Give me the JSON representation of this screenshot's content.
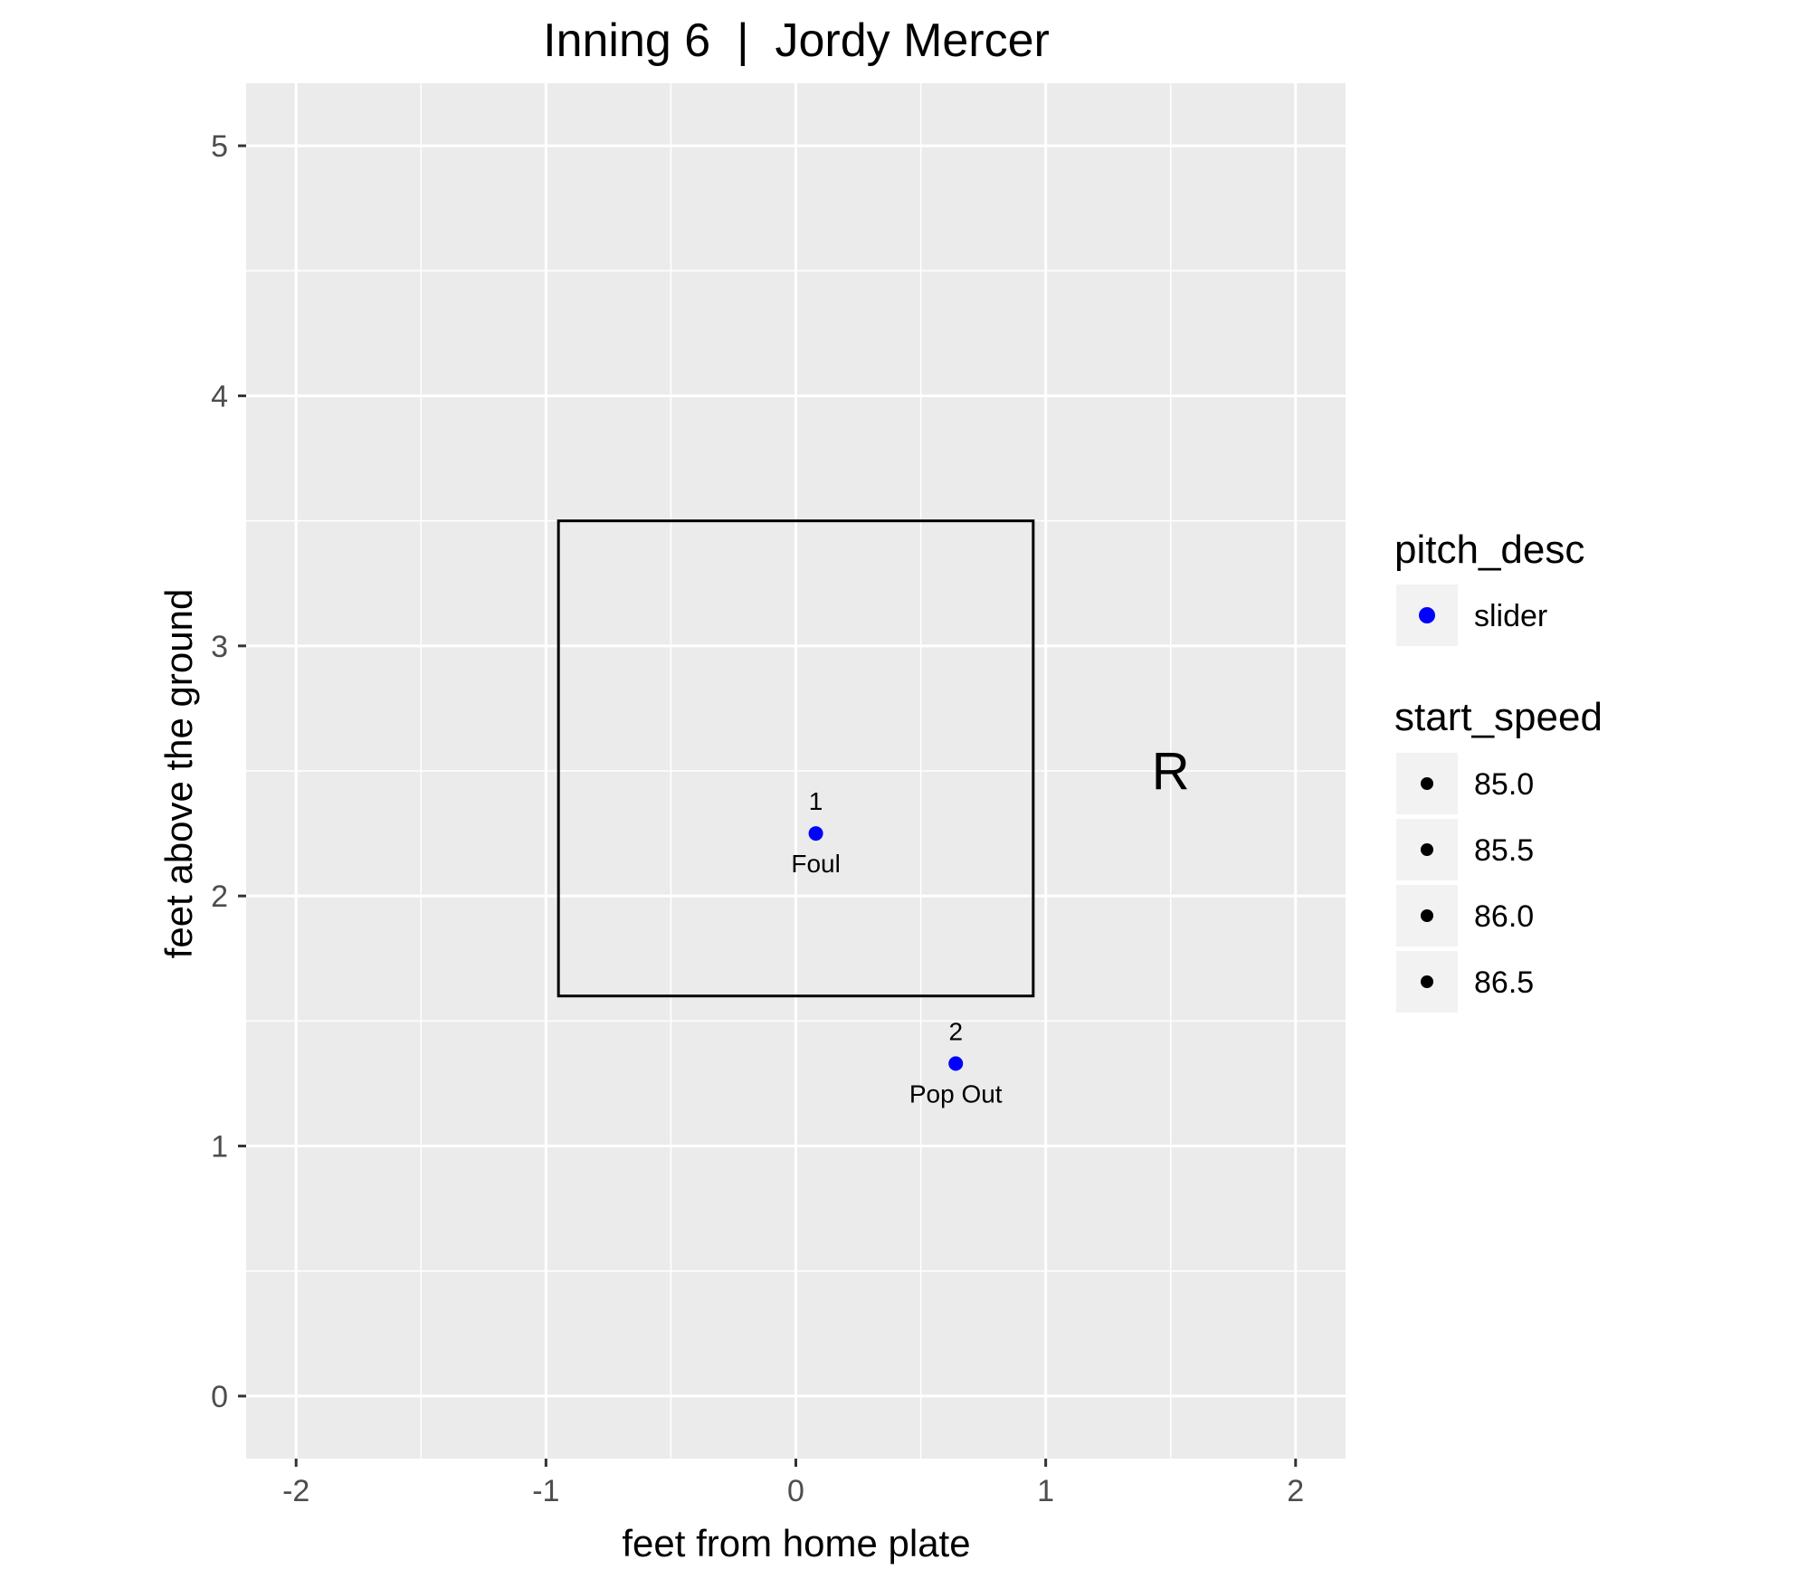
{
  "chart_data": {
    "type": "scatter",
    "title": "Inning 6  |  Jordy Mercer",
    "xlabel": "feet from home plate",
    "ylabel": "feet above the ground",
    "xlim": [
      -2.2,
      2.2
    ],
    "ylim": [
      -0.25,
      5.25
    ],
    "x_ticks": [
      -2,
      -1,
      0,
      1,
      2
    ],
    "y_ticks": [
      0,
      1,
      2,
      3,
      4,
      5
    ],
    "x_tick_labels": [
      "-2",
      "-1",
      "0",
      "1",
      "2"
    ],
    "y_tick_labels": [
      "0",
      "1",
      "2",
      "3",
      "4",
      "5"
    ],
    "grid": true,
    "strike_zone": {
      "x_min": -0.95,
      "x_max": 0.95,
      "y_min": 1.6,
      "y_max": 3.5
    },
    "side_label": {
      "text": "R",
      "x": 1.5,
      "y": 2.5
    },
    "points": [
      {
        "num": "1",
        "x": 0.08,
        "y": 2.25,
        "desc": "Foul",
        "pitch_desc": "slider",
        "color": "#0000ff"
      },
      {
        "num": "2",
        "x": 0.64,
        "y": 1.33,
        "desc": "Pop Out",
        "pitch_desc": "slider",
        "color": "#0000ff"
      }
    ],
    "legend": {
      "placement": "right",
      "pitch_desc": {
        "title": "pitch_desc",
        "items": [
          {
            "label": "slider",
            "color": "#0000ff"
          }
        ]
      },
      "start_speed": {
        "title": "start_speed",
        "items": [
          "85.0",
          "85.5",
          "86.0",
          "86.5"
        ]
      }
    },
    "colors": {
      "panel": "#ebebeb",
      "grid": "#ffffff",
      "point": "#0000ff",
      "zone": "#000000"
    }
  }
}
